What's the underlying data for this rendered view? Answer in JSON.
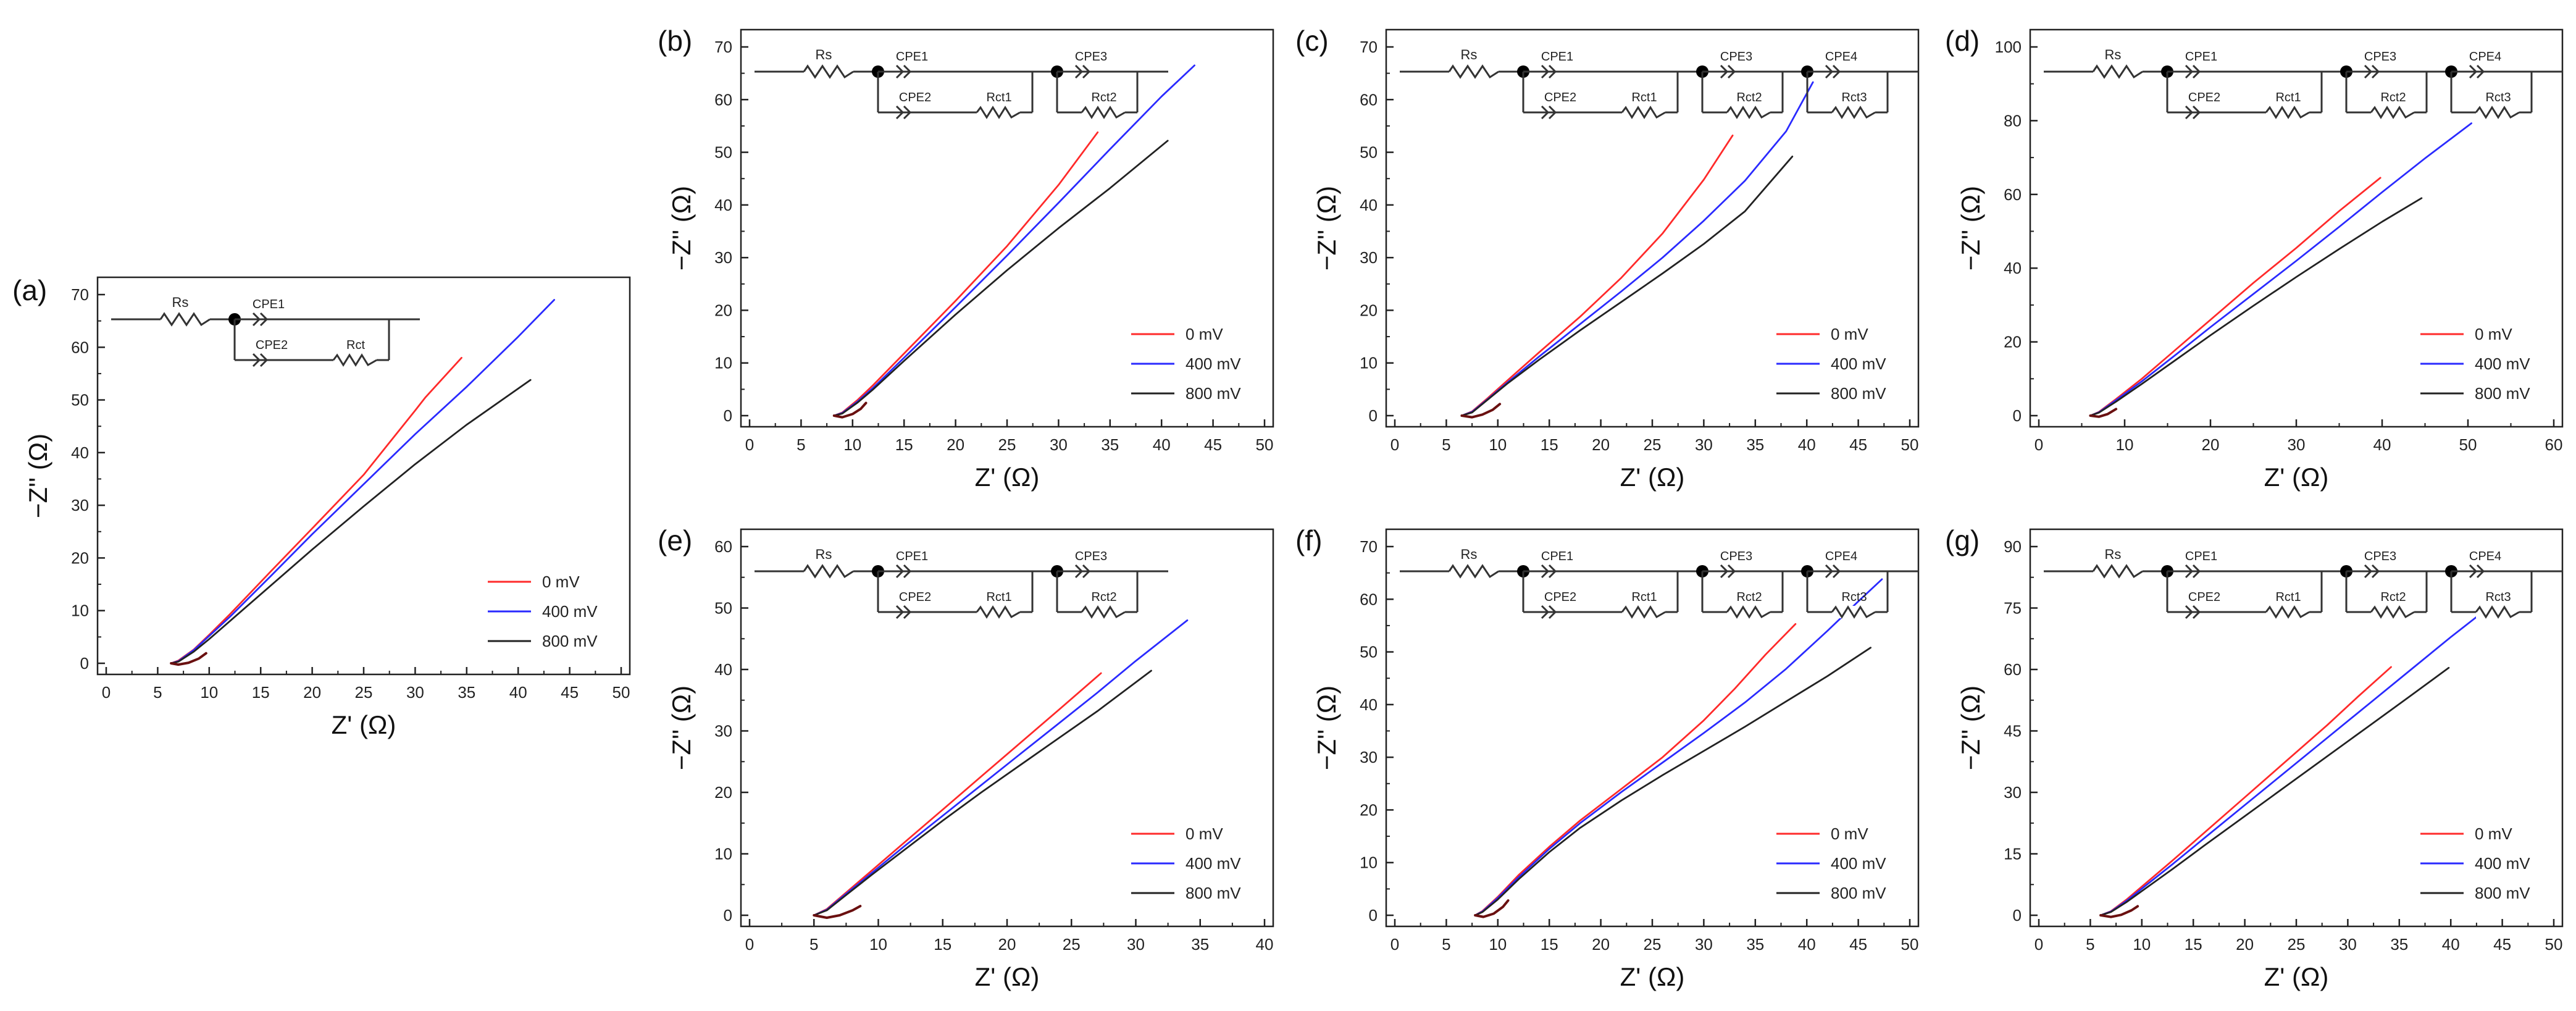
{
  "figure": {
    "panel_letters": [
      "(a)",
      "(b)",
      "(c)",
      "(d)",
      "(e)",
      "(f)",
      "(g)"
    ]
  },
  "chart_data": [
    {
      "id": "a",
      "label": "(a)",
      "type": "line",
      "xlabel": "Z' (Ω)",
      "ylabel": "−Z'' (Ω)",
      "xlim": [
        0,
        50
      ],
      "ylim": [
        0,
        70
      ],
      "xticks": [
        0,
        5,
        10,
        15,
        20,
        25,
        30,
        35,
        40,
        45,
        50
      ],
      "yticks": [
        0,
        10,
        20,
        30,
        40,
        50,
        60,
        70
      ],
      "legend": "bottom-right",
      "circuit": [
        "Rs",
        "CPE1",
        "CPE2",
        "Rct"
      ],
      "series": [
        {
          "name": "0 mV",
          "color": "#ff2a2a",
          "x": [
            6.3,
            7,
            8.5,
            10,
            12,
            16,
            20,
            25,
            30,
            31,
            34.5
          ],
          "y": [
            0,
            0.5,
            2.6,
            5.4,
            9.3,
            17.5,
            25.6,
            35.8,
            48,
            50.5,
            58
          ]
        },
        {
          "name": "400 mV",
          "color": "#2a2aff",
          "x": [
            6.3,
            7,
            8.5,
            10,
            12,
            16,
            20,
            25,
            30,
            35,
            40,
            43.5
          ],
          "y": [
            0,
            0.4,
            2.5,
            5.2,
            8.8,
            16.6,
            24.5,
            34,
            43.5,
            52.5,
            62,
            69
          ]
        },
        {
          "name": "800 mV",
          "color": "#222222",
          "x": [
            6.3,
            7,
            8.5,
            10,
            12,
            16,
            20,
            25,
            30,
            35,
            41.2
          ],
          "y": [
            0,
            0.3,
            2.2,
            4.6,
            8,
            14.8,
            21.6,
            29.8,
            37.8,
            45.3,
            53.8
          ]
        },
        {
          "name": "arc",
          "color": "#6a1010",
          "x": [
            6.3,
            7,
            8,
            9,
            9.7
          ],
          "y": [
            0,
            -0.25,
            0.1,
            0.9,
            1.9
          ]
        }
      ]
    },
    {
      "id": "b",
      "label": "(b)",
      "type": "line",
      "xlabel": "Z' (Ω)",
      "ylabel": "−Z'' (Ω)",
      "xlim": [
        0,
        50
      ],
      "ylim": [
        0,
        70
      ],
      "xticks": [
        0,
        5,
        10,
        15,
        20,
        25,
        30,
        35,
        40,
        45,
        50
      ],
      "yticks": [
        0,
        10,
        20,
        30,
        40,
        50,
        60,
        70
      ],
      "legend": "bottom-right",
      "circuit": [
        "Rs",
        "CPE1",
        "CPE3",
        "CPE2",
        "Rct1",
        "Rct2"
      ],
      "series": [
        {
          "name": "0 mV",
          "color": "#ff2a2a",
          "x": [
            8.2,
            9,
            10.5,
            12,
            15,
            20,
            25,
            30,
            33.8
          ],
          "y": [
            0,
            0.6,
            3,
            5.8,
            11.8,
            21.8,
            32.2,
            43.8,
            53.8
          ]
        },
        {
          "name": "400 mV",
          "color": "#2a2aff",
          "x": [
            8.2,
            9,
            10.5,
            12,
            15,
            20,
            25,
            30,
            35,
            40,
            43.2
          ],
          "y": [
            0,
            0.5,
            2.7,
            5.3,
            11,
            20.6,
            30.4,
            40.4,
            50.6,
            60.6,
            66.5
          ]
        },
        {
          "name": "800 mV",
          "color": "#222222",
          "x": [
            8.2,
            9,
            10.5,
            12,
            15,
            20,
            25,
            30,
            35,
            40.6
          ],
          "y": [
            0,
            0.4,
            2.5,
            5,
            10.4,
            19.2,
            27.6,
            35.6,
            43.2,
            52.2
          ]
        },
        {
          "name": "arc",
          "color": "#6a1010",
          "x": [
            8.2,
            9,
            10,
            10.8,
            11.3
          ],
          "y": [
            0,
            -0.3,
            0.3,
            1.3,
            2.4
          ]
        }
      ]
    },
    {
      "id": "c",
      "label": "(c)",
      "type": "line",
      "xlabel": "Z' (Ω)",
      "ylabel": "−Z'' (Ω)",
      "xlim": [
        0,
        50
      ],
      "ylim": [
        0,
        70
      ],
      "xticks": [
        0,
        5,
        10,
        15,
        20,
        25,
        30,
        35,
        40,
        45,
        50
      ],
      "yticks": [
        0,
        10,
        20,
        30,
        40,
        50,
        60,
        70
      ],
      "legend": "bottom-right",
      "circuit": [
        "Rs",
        "CPE1",
        "CPE3",
        "CPE4",
        "CPE2",
        "Rct1",
        "Rct2",
        "Rct3"
      ],
      "series": [
        {
          "name": "0 mV",
          "color": "#ff2a2a",
          "x": [
            6.5,
            7.5,
            9,
            11,
            14,
            18,
            22,
            26,
            30,
            32.8
          ],
          "y": [
            0,
            0.8,
            3.3,
            6.8,
            12,
            18.8,
            26.2,
            34.6,
            44.8,
            53.2
          ]
        },
        {
          "name": "400 mV",
          "color": "#2a2aff",
          "x": [
            6.5,
            7.5,
            9,
            11,
            14,
            18,
            22,
            26,
            30,
            34,
            38,
            40.6
          ],
          "y": [
            0,
            0.7,
            3.1,
            6.4,
            11.2,
            17.4,
            23.6,
            30,
            37,
            44.6,
            54,
            63.3
          ]
        },
        {
          "name": "800 mV",
          "color": "#222222",
          "x": [
            6.5,
            7.5,
            9,
            11,
            14,
            18,
            22,
            26,
            30,
            34,
            38.6
          ],
          "y": [
            0,
            0.6,
            3,
            6.2,
            10.6,
            16.2,
            21.6,
            27,
            32.6,
            38.8,
            49.2
          ]
        },
        {
          "name": "arc",
          "color": "#6a1010",
          "x": [
            6.5,
            7.5,
            8.5,
            9.5,
            10.2
          ],
          "y": [
            0,
            -0.3,
            0.2,
            1.1,
            2.2
          ]
        }
      ]
    },
    {
      "id": "d",
      "label": "(d)",
      "type": "line",
      "xlabel": "Z' (Ω)",
      "ylabel": "−Z'' (Ω)",
      "xlim": [
        0,
        60
      ],
      "ylim": [
        0,
        100
      ],
      "xticks": [
        0,
        10,
        20,
        30,
        40,
        50,
        60
      ],
      "yticks": [
        0,
        20,
        40,
        60,
        80,
        100
      ],
      "legend": "bottom-right",
      "circuit": [
        "Rs",
        "CPE1",
        "CPE3",
        "CPE4",
        "CPE2",
        "Rct1",
        "Rct2",
        "Rct3"
      ],
      "series": [
        {
          "name": "0 mV",
          "color": "#ff2a2a",
          "x": [
            6,
            7,
            9,
            12,
            16,
            20,
            25,
            30,
            35,
            39.8
          ],
          "y": [
            0,
            1,
            4.5,
            10,
            18,
            26,
            36,
            45.5,
            55.5,
            64.5
          ]
        },
        {
          "name": "400 mV",
          "color": "#2a2aff",
          "x": [
            6,
            7,
            9,
            12,
            16,
            20,
            25,
            30,
            35,
            40,
            45,
            50.4
          ],
          "y": [
            0,
            0.9,
            4.2,
            9.3,
            16.6,
            24,
            33,
            42,
            51.2,
            60.6,
            69.8,
            79.3
          ]
        },
        {
          "name": "800 mV",
          "color": "#222222",
          "x": [
            6,
            7,
            9,
            12,
            16,
            20,
            25,
            30,
            35,
            40,
            44.6
          ],
          "y": [
            0,
            0.8,
            3.8,
            8.6,
            15.2,
            21.8,
            29.8,
            37.6,
            45.2,
            52.6,
            59
          ]
        },
        {
          "name": "arc",
          "color": "#6a1010",
          "x": [
            6,
            7,
            8,
            9
          ],
          "y": [
            0,
            -0.3,
            0.4,
            1.8
          ]
        }
      ]
    },
    {
      "id": "e",
      "label": "(e)",
      "type": "line",
      "xlabel": "Z' (Ω)",
      "ylabel": "−Z'' (Ω)",
      "xlim": [
        0,
        40
      ],
      "ylim": [
        0,
        60
      ],
      "xticks": [
        0,
        5,
        10,
        15,
        20,
        25,
        30,
        35,
        40
      ],
      "yticks": [
        0,
        10,
        20,
        30,
        40,
        50,
        60
      ],
      "legend": "bottom-right",
      "circuit": [
        "Rs",
        "CPE1",
        "CPE3",
        "CPE2",
        "Rct1",
        "Rct2"
      ],
      "series": [
        {
          "name": "0 mV",
          "color": "#ff2a2a",
          "x": [
            5,
            6,
            7.5,
            9.5,
            12,
            15,
            18,
            21,
            24,
            27.3
          ],
          "y": [
            0,
            1,
            3.7,
            7.3,
            11.8,
            17.2,
            22.6,
            28,
            33.4,
            39.4
          ]
        },
        {
          "name": "400 mV",
          "color": "#2a2aff",
          "x": [
            5,
            6,
            7.5,
            9.5,
            12,
            15,
            18,
            21,
            24,
            27,
            30,
            34
          ],
          "y": [
            0,
            0.9,
            3.5,
            6.9,
            11.2,
            16.2,
            21.2,
            26.2,
            31.2,
            36.2,
            41.4,
            48
          ]
        },
        {
          "name": "800 mV",
          "color": "#222222",
          "x": [
            5,
            6,
            7.5,
            9.5,
            12,
            15,
            18,
            21,
            24,
            27,
            31.2
          ],
          "y": [
            0,
            0.8,
            3.3,
            6.6,
            10.6,
            15.4,
            20,
            24.4,
            28.8,
            33.2,
            39.8
          ]
        },
        {
          "name": "arc",
          "color": "#6a1010",
          "x": [
            5,
            6,
            7,
            8,
            8.6
          ],
          "y": [
            0,
            -0.4,
            0,
            0.8,
            1.5
          ]
        }
      ]
    },
    {
      "id": "f",
      "label": "(f)",
      "type": "line",
      "xlabel": "Z' (Ω)",
      "ylabel": "−Z'' (Ω)",
      "xlim": [
        0,
        50
      ],
      "ylim": [
        0,
        70
      ],
      "xticks": [
        0,
        5,
        10,
        15,
        20,
        25,
        30,
        35,
        40,
        45,
        50
      ],
      "yticks": [
        0,
        10,
        20,
        30,
        40,
        50,
        60,
        70
      ],
      "legend": "bottom-right",
      "circuit": [
        "Rs",
        "CPE1",
        "CPE3",
        "CPE4",
        "CPE2",
        "Rct1",
        "Rct2",
        "Rct3"
      ],
      "series": [
        {
          "name": "0 mV",
          "color": "#ff2a2a",
          "x": [
            7.8,
            8.5,
            10,
            12,
            15,
            18,
            22,
            26,
            30,
            33,
            36,
            38.9
          ],
          "y": [
            0,
            0.8,
            3.5,
            7.6,
            13,
            18,
            24,
            30,
            37,
            43,
            49.5,
            55.3
          ]
        },
        {
          "name": "400 mV",
          "color": "#2a2aff",
          "x": [
            7.8,
            8.5,
            10,
            12,
            15,
            18,
            22,
            26,
            30,
            34,
            38,
            42,
            45,
            47.3
          ],
          "y": [
            0,
            0.7,
            3.3,
            7.2,
            12.6,
            17.5,
            23.4,
            29,
            34.6,
            40.4,
            46.8,
            54,
            59.6,
            63.8
          ]
        },
        {
          "name": "800 mV",
          "color": "#222222",
          "x": [
            7.8,
            8.5,
            10,
            12,
            15,
            18,
            22,
            26,
            30,
            34,
            38,
            42,
            46.2
          ],
          "y": [
            0,
            0.6,
            3,
            6.8,
            12,
            16.6,
            21.8,
            26.6,
            31.2,
            35.8,
            40.6,
            45.4,
            50.8
          ]
        },
        {
          "name": "arc",
          "color": "#6a1010",
          "x": [
            7.8,
            8.6,
            9.6,
            10.5,
            11
          ],
          "y": [
            0,
            -0.3,
            0.3,
            1.6,
            2.8
          ]
        }
      ]
    },
    {
      "id": "g",
      "label": "(g)",
      "type": "line",
      "xlabel": "Z' (Ω)",
      "ylabel": "−Z'' (Ω)",
      "xlim": [
        0,
        50
      ],
      "ylim": [
        0,
        90
      ],
      "xticks": [
        0,
        5,
        10,
        15,
        20,
        25,
        30,
        35,
        40,
        45,
        50
      ],
      "yticks": [
        0,
        15,
        30,
        45,
        60,
        75,
        90
      ],
      "legend": "bottom-right",
      "circuit": [
        "Rs",
        "CPE1",
        "CPE3",
        "CPE4",
        "CPE2",
        "Rct1",
        "Rct2",
        "Rct3"
      ],
      "series": [
        {
          "name": "0 mV",
          "color": "#ff2a2a",
          "x": [
            6,
            7,
            8.5,
            10,
            13,
            16,
            20,
            24,
            28,
            31,
            34.2
          ],
          "y": [
            0,
            1,
            3.8,
            7,
            13.4,
            20,
            28.8,
            37.6,
            46.4,
            53.4,
            60.6
          ]
        },
        {
          "name": "400 mV",
          "color": "#2a2aff",
          "x": [
            6,
            7,
            8.5,
            10,
            13,
            16,
            20,
            24,
            28,
            32,
            36,
            40,
            43.2
          ],
          "y": [
            0,
            0.9,
            3.5,
            6.5,
            12.5,
            18.7,
            26.9,
            35.1,
            43.3,
            51.5,
            59.7,
            67.9,
            74.2
          ]
        },
        {
          "name": "800 mV",
          "color": "#222222",
          "x": [
            6,
            7,
            8.5,
            10,
            13,
            16,
            20,
            24,
            28,
            32,
            36,
            39.8
          ],
          "y": [
            0,
            0.8,
            3.2,
            5.9,
            11.3,
            16.9,
            24.2,
            31.5,
            38.8,
            46.1,
            53.4,
            60.4
          ]
        },
        {
          "name": "arc",
          "color": "#6a1010",
          "x": [
            6,
            7,
            8,
            9,
            9.6
          ],
          "y": [
            0,
            -0.4,
            0.1,
            1.2,
            2.2
          ]
        }
      ]
    }
  ]
}
